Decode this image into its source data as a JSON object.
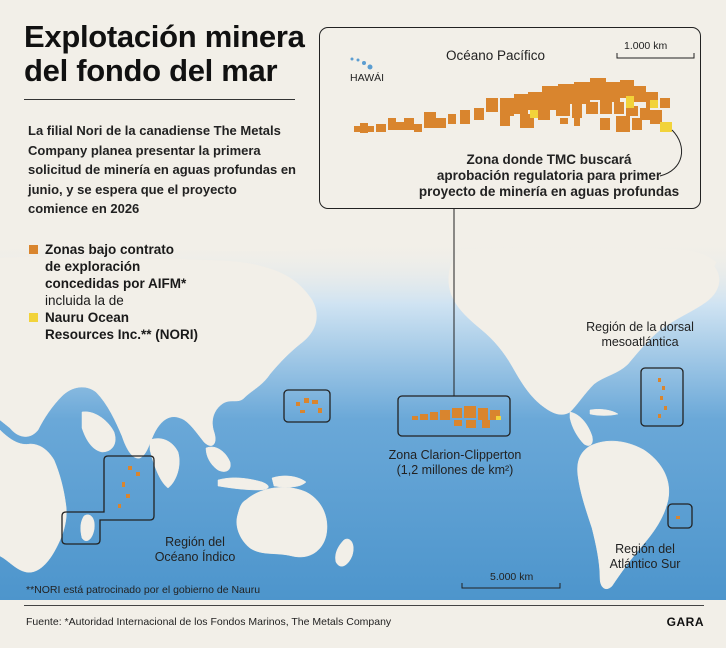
{
  "title": {
    "line1": "Explotación minera",
    "line2": "del fondo del mar"
  },
  "intro": "La filial Nori de la canadiense The Metals Company planea presentar la primera solicitud de minería en aguas profundas en junio, y se espera que el proyecto comience en 2026",
  "legend": {
    "item1_line1": "Zonas bajo contrato",
    "item1_line2": "de exploración",
    "item1_line3": "concedidas por AIFM*",
    "item1_line4": "incluida la de",
    "item2_line1": "Nauru Ocean",
    "item2_line2": "Resources Inc.** (NORI)"
  },
  "inset": {
    "ocean_label": "Océano Pacífico",
    "hawaii_label": "HAWÁI",
    "scale_label": "1.000 km",
    "callout_line1": "Zona donde TMC buscará",
    "callout_line2": "aprobación regulatoria para primer",
    "callout_line3": "proyecto de minería en aguas profundas"
  },
  "regions": {
    "ccz_line1": "Zona Clarion-Clipperton",
    "ccz_line2": "(1,2 millones de km²)",
    "atlantic_ridge_line1": "Región de la dorsal",
    "atlantic_ridge_line2": "mesoatlántica",
    "south_atlantic_line1": "Región del",
    "south_atlantic_line2": "Atlántico Sur",
    "indian_line1": "Región del",
    "indian_line2": "Océano Índico"
  },
  "map_scale_label": "5.000 km",
  "footnote": "**NORI está patrocinado por el gobierno de Nauru",
  "source": "Fuente: *Autoridad Internacional de los Fondos Marinos, The Metals Company",
  "brand": "GARA",
  "colors": {
    "background": "#f2efe8",
    "ocean_deep": "#4f98cf",
    "ocean_light": "#bcd9ef",
    "contract_zone": "#d9852e",
    "nori_zone": "#f2d33a"
  }
}
